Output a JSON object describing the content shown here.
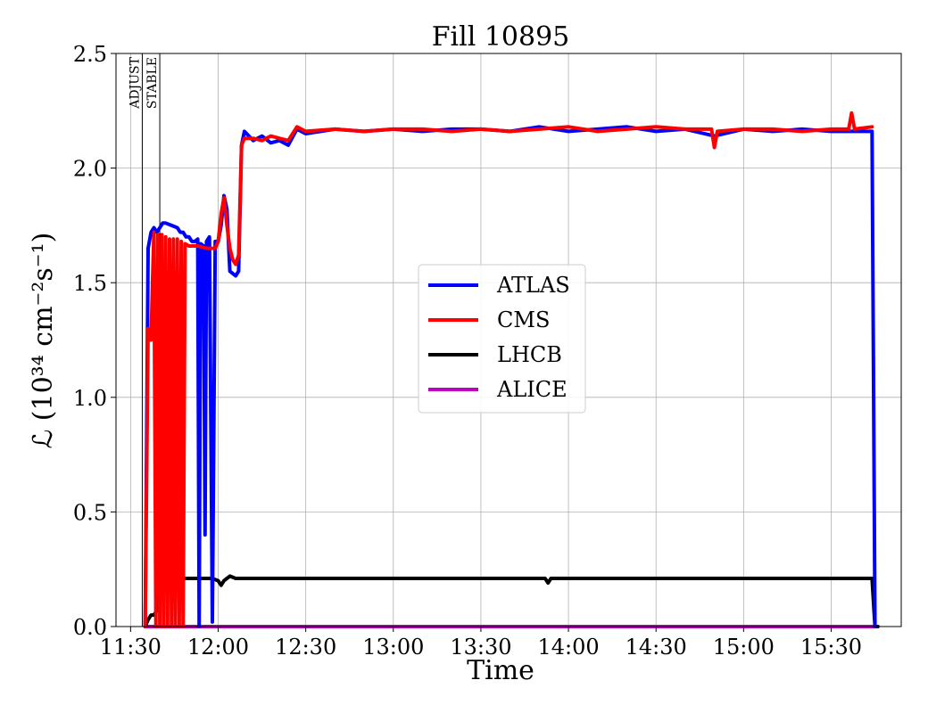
{
  "chart_data": {
    "type": "line",
    "title": "Fill 10895",
    "xlabel": "Time",
    "ylabel": "ℒ (10³⁴ cm⁻²s⁻¹)",
    "x_unit": "time of day (HH:MM)",
    "xlim": [
      "11:25",
      "15:54"
    ],
    "ylim": [
      0,
      2.5
    ],
    "grid": true,
    "legend_position": "center-right",
    "x_ticks": [
      "11:30",
      "12:00",
      "12:30",
      "13:00",
      "13:30",
      "14:00",
      "14:30",
      "15:00",
      "15:30"
    ],
    "y_ticks": [
      "0.0",
      "0.5",
      "1.0",
      "1.5",
      "2.0",
      "2.5"
    ],
    "phases": [
      {
        "label": "ADJUST",
        "time": "11:34"
      },
      {
        "label": "STABLE",
        "time": "11:40"
      }
    ],
    "series": [
      {
        "name": "ATLAS",
        "color": "#0000ff",
        "points": [
          [
            "11:35",
            0.0
          ],
          [
            "11:36",
            1.65
          ],
          [
            "11:37",
            1.72
          ],
          [
            "11:38",
            1.74
          ],
          [
            "11:39",
            1.72
          ],
          [
            "11:40",
            1.74
          ],
          [
            "11:41",
            1.76
          ],
          [
            "11:42",
            1.76
          ],
          [
            "11:44",
            1.75
          ],
          [
            "11:46",
            1.74
          ],
          [
            "11:47",
            1.72
          ],
          [
            "11:48",
            1.72
          ],
          [
            "11:49",
            1.7
          ],
          [
            "11:50",
            1.7
          ],
          [
            "11:51",
            1.68
          ],
          [
            "11:52",
            1.68
          ],
          [
            "11:53",
            1.69
          ],
          [
            "11:53:30",
            0.0
          ],
          [
            "11:54",
            1.67
          ],
          [
            "11:55",
            1.66
          ],
          [
            "11:55:30",
            0.4
          ],
          [
            "11:56",
            1.68
          ],
          [
            "11:57",
            1.7
          ],
          [
            "11:58",
            0.02
          ],
          [
            "11:59",
            1.68
          ],
          [
            "12:00",
            1.68
          ],
          [
            "12:01",
            1.75
          ],
          [
            "12:02",
            1.88
          ],
          [
            "12:03",
            1.82
          ],
          [
            "12:04",
            1.55
          ],
          [
            "12:05",
            1.54
          ],
          [
            "12:06",
            1.53
          ],
          [
            "12:07",
            1.55
          ],
          [
            "12:08",
            2.1
          ],
          [
            "12:09",
            2.16
          ],
          [
            "12:12",
            2.12
          ],
          [
            "12:15",
            2.14
          ],
          [
            "12:18",
            2.11
          ],
          [
            "12:21",
            2.12
          ],
          [
            "12:24",
            2.1
          ],
          [
            "12:27",
            2.17
          ],
          [
            "12:30",
            2.15
          ],
          [
            "12:40",
            2.17
          ],
          [
            "12:50",
            2.16
          ],
          [
            "13:00",
            2.17
          ],
          [
            "13:10",
            2.16
          ],
          [
            "13:20",
            2.17
          ],
          [
            "13:30",
            2.17
          ],
          [
            "13:40",
            2.16
          ],
          [
            "13:50",
            2.18
          ],
          [
            "14:00",
            2.16
          ],
          [
            "14:10",
            2.17
          ],
          [
            "14:20",
            2.18
          ],
          [
            "14:30",
            2.16
          ],
          [
            "14:40",
            2.17
          ],
          [
            "14:50",
            2.14
          ],
          [
            "15:00",
            2.17
          ],
          [
            "15:10",
            2.16
          ],
          [
            "15:20",
            2.17
          ],
          [
            "15:30",
            2.16
          ],
          [
            "15:40",
            2.16
          ],
          [
            "15:44",
            2.16
          ],
          [
            "15:45",
            0.0
          ]
        ]
      },
      {
        "name": "CMS",
        "color": "#ff0000",
        "points": [
          [
            "11:35",
            0.0
          ],
          [
            "11:36",
            1.3
          ],
          [
            "11:37",
            1.25
          ],
          [
            "11:37:30",
            1.5
          ],
          [
            "11:38",
            1.72
          ],
          [
            "11:38:40",
            0.0
          ],
          [
            "11:39:20",
            1.71
          ],
          [
            "11:40",
            0.0
          ],
          [
            "11:40:40",
            1.71
          ],
          [
            "11:41:20",
            0.0
          ],
          [
            "11:42",
            1.7
          ],
          [
            "11:42:40",
            0.0
          ],
          [
            "11:43:20",
            1.69
          ],
          [
            "11:44",
            0.0
          ],
          [
            "11:44:40",
            1.69
          ],
          [
            "11:45:20",
            0.0
          ],
          [
            "11:46",
            1.69
          ],
          [
            "11:46:40",
            0.0
          ],
          [
            "11:47:20",
            1.68
          ],
          [
            "11:48",
            0.0
          ],
          [
            "11:48:40",
            1.67
          ],
          [
            "11:50",
            1.66
          ],
          [
            "11:53",
            1.66
          ],
          [
            "11:56",
            1.65
          ],
          [
            "11:59",
            1.65
          ],
          [
            "12:00",
            1.68
          ],
          [
            "12:01",
            1.8
          ],
          [
            "12:02",
            1.87
          ],
          [
            "12:03",
            1.75
          ],
          [
            "12:04",
            1.65
          ],
          [
            "12:05",
            1.6
          ],
          [
            "12:06",
            1.58
          ],
          [
            "12:07",
            1.62
          ],
          [
            "12:08",
            2.1
          ],
          [
            "12:09",
            2.13
          ],
          [
            "12:12",
            2.13
          ],
          [
            "12:15",
            2.12
          ],
          [
            "12:18",
            2.14
          ],
          [
            "12:21",
            2.13
          ],
          [
            "12:24",
            2.12
          ],
          [
            "12:27",
            2.18
          ],
          [
            "12:30",
            2.16
          ],
          [
            "12:40",
            2.17
          ],
          [
            "12:50",
            2.16
          ],
          [
            "13:00",
            2.17
          ],
          [
            "13:10",
            2.17
          ],
          [
            "13:20",
            2.16
          ],
          [
            "13:30",
            2.17
          ],
          [
            "13:40",
            2.16
          ],
          [
            "13:50",
            2.17
          ],
          [
            "14:00",
            2.18
          ],
          [
            "14:10",
            2.16
          ],
          [
            "14:20",
            2.17
          ],
          [
            "14:30",
            2.18
          ],
          [
            "14:40",
            2.17
          ],
          [
            "14:49",
            2.17
          ],
          [
            "14:50",
            2.09
          ],
          [
            "14:51",
            2.16
          ],
          [
            "15:00",
            2.17
          ],
          [
            "15:10",
            2.17
          ],
          [
            "15:20",
            2.16
          ],
          [
            "15:30",
            2.17
          ],
          [
            "15:36",
            2.17
          ],
          [
            "15:37",
            2.24
          ],
          [
            "15:38",
            2.17
          ],
          [
            "15:44",
            2.18
          ]
        ]
      },
      {
        "name": "LHCB",
        "color": "#000000",
        "points": [
          [
            "11:35",
            0.0
          ],
          [
            "11:36",
            0.03
          ],
          [
            "11:37",
            0.05
          ],
          [
            "11:38",
            0.05
          ],
          [
            "11:39",
            0.07
          ],
          [
            "11:40",
            0.2
          ],
          [
            "11:42",
            0.21
          ],
          [
            "11:45",
            0.21
          ],
          [
            "11:50",
            0.21
          ],
          [
            "11:55",
            0.21
          ],
          [
            "11:58",
            0.21
          ],
          [
            "12:00",
            0.2
          ],
          [
            "12:01",
            0.18
          ],
          [
            "12:02",
            0.2
          ],
          [
            "12:03",
            0.21
          ],
          [
            "12:04",
            0.22
          ],
          [
            "12:06",
            0.21
          ],
          [
            "12:30",
            0.21
          ],
          [
            "13:00",
            0.21
          ],
          [
            "13:30",
            0.21
          ],
          [
            "13:52",
            0.21
          ],
          [
            "13:53",
            0.19
          ],
          [
            "13:54",
            0.21
          ],
          [
            "14:00",
            0.21
          ],
          [
            "14:30",
            0.21
          ],
          [
            "15:00",
            0.21
          ],
          [
            "15:30",
            0.21
          ],
          [
            "15:44",
            0.21
          ],
          [
            "15:45",
            0.0
          ],
          [
            "15:46",
            0.0
          ]
        ]
      },
      {
        "name": "ALICE",
        "color": "#bf00bf",
        "points": [
          [
            "11:35",
            0.0
          ],
          [
            "12:00",
            0.0
          ],
          [
            "13:00",
            0.0
          ],
          [
            "14:00",
            0.0
          ],
          [
            "15:00",
            0.0
          ],
          [
            "15:45",
            0.0
          ]
        ]
      }
    ]
  }
}
